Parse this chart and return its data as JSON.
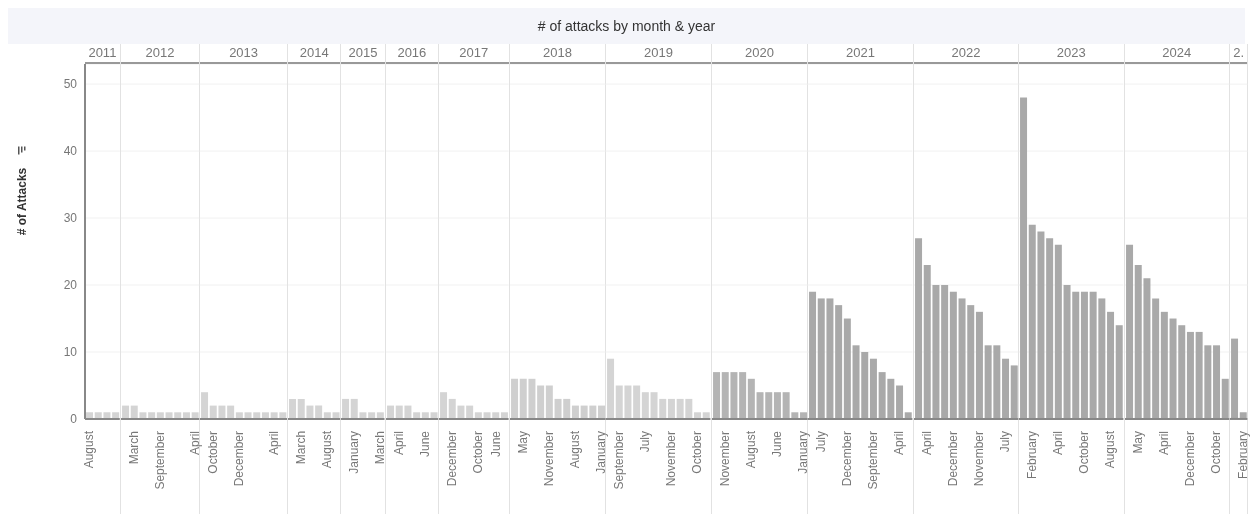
{
  "chart_data": [
    {
      "type": "other",
      "title": "# of attacks by month & year"
    },
    {
      "type": "bar",
      "title": "2011",
      "ylabel": "# of Attacks",
      "categories": [
        "August",
        null,
        null,
        null
      ],
      "values": [
        1,
        1,
        1,
        1
      ],
      "color": "#d4d4d4",
      "ylim": [
        0,
        53
      ],
      "yticks": [
        0,
        10,
        20,
        30,
        40,
        50
      ],
      "grid": "y"
    },
    {
      "type": "bar",
      "title": "2012",
      "categories": [
        null,
        "March",
        null,
        null,
        "September",
        null,
        null,
        null,
        "April"
      ],
      "values": [
        2,
        2,
        1,
        1,
        1,
        1,
        1,
        1,
        1
      ],
      "color": "#d4d4d4",
      "ylim": [
        0,
        53
      ],
      "yticks": [
        0,
        10,
        20,
        30,
        40,
        50
      ],
      "grid": "y",
      "tick_labels": "x"
    },
    {
      "type": "bar",
      "title": "2013",
      "categories": [
        null,
        "October",
        null,
        null,
        "December",
        null,
        null,
        null,
        "April",
        null
      ],
      "values": [
        4,
        2,
        2,
        2,
        1,
        1,
        1,
        1,
        1,
        1
      ],
      "color": "#d4d4d4",
      "ylim": [
        0,
        53
      ],
      "yticks": [
        0,
        10,
        20,
        30,
        40,
        50
      ],
      "grid": "y",
      "tick_labels": "x"
    },
    {
      "type": "bar",
      "title": "2014",
      "categories": [
        null,
        "March",
        null,
        null,
        "August",
        null
      ],
      "values": [
        3,
        3,
        2,
        2,
        1,
        1
      ],
      "color": "#d4d4d4",
      "ylim": [
        0,
        53
      ],
      "yticks": [
        0,
        10,
        20,
        30,
        40,
        50
      ],
      "grid": "y",
      "tick_labels": "x"
    },
    {
      "type": "bar",
      "title": "2015",
      "categories": [
        null,
        "January",
        null,
        null,
        "March"
      ],
      "values": [
        3,
        3,
        1,
        1,
        1
      ],
      "color": "#d4d4d4",
      "ylim": [
        0,
        53
      ],
      "yticks": [
        0,
        10,
        20,
        30,
        40,
        50
      ],
      "grid": "y",
      "tick_labels": "x"
    },
    {
      "type": "bar",
      "title": "2016",
      "categories": [
        null,
        "April",
        null,
        null,
        "June",
        null
      ],
      "values": [
        2,
        2,
        2,
        1,
        1,
        1
      ],
      "color": "#d4d4d4",
      "ylim": [
        0,
        53
      ],
      "yticks": [
        0,
        10,
        20,
        30,
        40,
        50
      ],
      "grid": "y",
      "tick_labels": "x"
    },
    {
      "type": "bar",
      "title": "2017",
      "categories": [
        null,
        "December",
        null,
        null,
        "October",
        null,
        "June",
        null
      ],
      "values": [
        4,
        3,
        2,
        2,
        1,
        1,
        1,
        1
      ],
      "color": "#d4d4d4",
      "ylim": [
        0,
        53
      ],
      "yticks": [
        0,
        10,
        20,
        30,
        40,
        50
      ],
      "grid": "y",
      "tick_labels": "x"
    },
    {
      "type": "bar",
      "title": "2018",
      "categories": [
        null,
        "May",
        null,
        null,
        "November",
        null,
        null,
        "August",
        null,
        null,
        "January"
      ],
      "values": [
        6,
        6,
        6,
        5,
        5,
        3,
        3,
        2,
        2,
        2,
        2
      ],
      "color": "#cfcfcf",
      "ylim": [
        0,
        53
      ],
      "yticks": [
        0,
        10,
        20,
        30,
        40,
        50
      ],
      "grid": "y",
      "tick_labels": "x"
    },
    {
      "type": "bar",
      "title": "2019",
      "categories": [
        null,
        "September",
        null,
        null,
        "July",
        null,
        null,
        "November",
        null,
        null,
        "October",
        null
      ],
      "values": [
        9,
        5,
        5,
        5,
        4,
        4,
        3,
        3,
        3,
        3,
        1,
        1
      ],
      "color": "#d4d4d4",
      "ylim": [
        0,
        53
      ],
      "yticks": [
        0,
        10,
        20,
        30,
        40,
        50
      ],
      "grid": "y",
      "tick_labels": "x"
    },
    {
      "type": "bar",
      "title": "2020",
      "categories": [
        null,
        "November",
        null,
        null,
        "August",
        null,
        null,
        "June",
        null,
        null,
        "January"
      ],
      "values": [
        7,
        7,
        7,
        7,
        6,
        4,
        4,
        4,
        4,
        1,
        1
      ],
      "color": "#b4b4b4",
      "ylim": [
        0,
        53
      ],
      "yticks": [
        0,
        10,
        20,
        30,
        40,
        50
      ],
      "grid": "y",
      "tick_labels": "x"
    },
    {
      "type": "bar",
      "title": "2021",
      "categories": [
        null,
        "July",
        null,
        null,
        "December",
        null,
        null,
        "September",
        null,
        null,
        "April",
        null
      ],
      "values": [
        19,
        18,
        18,
        17,
        15,
        11,
        10,
        9,
        7,
        6,
        5,
        1
      ],
      "color": "#a9a9a9",
      "ylim": [
        0,
        53
      ],
      "yticks": [
        0,
        10,
        20,
        30,
        40,
        50
      ],
      "grid": "y",
      "tick_labels": "x"
    },
    {
      "type": "bar",
      "title": "2022",
      "categories": [
        null,
        "April",
        null,
        null,
        "December",
        null,
        null,
        "November",
        null,
        null,
        "July",
        null
      ],
      "values": [
        27,
        23,
        20,
        20,
        19,
        18,
        17,
        16,
        11,
        11,
        9,
        8
      ],
      "color": "#a9a9a9",
      "ylim": [
        0,
        53
      ],
      "yticks": [
        0,
        10,
        20,
        30,
        40,
        50
      ],
      "grid": "y",
      "tick_labels": "x"
    },
    {
      "type": "bar",
      "title": "2023",
      "categories": [
        null,
        "February",
        null,
        null,
        "April",
        null,
        null,
        "October",
        null,
        null,
        "August",
        null
      ],
      "values": [
        48,
        29,
        28,
        27,
        26,
        20,
        19,
        19,
        19,
        18,
        16,
        14
      ],
      "color": "#a9a9a9",
      "ylim": [
        0,
        53
      ],
      "yticks": [
        0,
        10,
        20,
        30,
        40,
        50
      ],
      "grid": "y",
      "tick_labels": "x"
    },
    {
      "type": "bar",
      "title": "2024",
      "categories": [
        null,
        "May",
        null,
        null,
        "April",
        null,
        null,
        "December",
        null,
        null,
        "October",
        null
      ],
      "values": [
        26,
        23,
        21,
        18,
        16,
        15,
        14,
        13,
        13,
        11,
        11,
        6
      ],
      "color": "#a9a9a9",
      "ylim": [
        0,
        53
      ],
      "yticks": [
        0,
        10,
        20,
        30,
        40,
        50
      ],
      "grid": "y",
      "tick_labels": "x"
    },
    {
      "type": "bar",
      "title": "2.",
      "categories": [
        null,
        "February"
      ],
      "values": [
        12,
        1
      ],
      "color": "#a9a9a9",
      "ylim": [
        0,
        53
      ],
      "yticks": [
        0,
        10,
        20,
        30,
        40,
        50
      ],
      "grid": "y",
      "tick_labels": "x"
    }
  ]
}
